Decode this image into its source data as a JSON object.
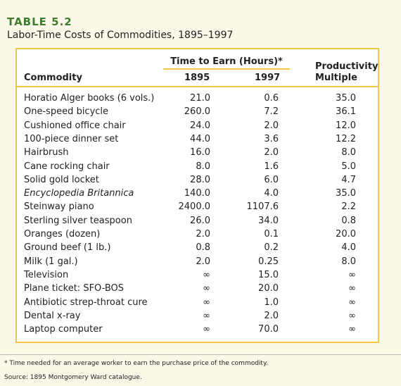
{
  "header": {
    "label": "TABLE 5.2",
    "title": "Labor-Time Costs of Commodities, 1895–1997"
  },
  "table": {
    "group_header": "Time to Earn (Hours)*",
    "columns": [
      "Commodity",
      "1895",
      "1997",
      "Productivity Multiple"
    ],
    "rows": [
      [
        "Horatio Alger books (6 vols.)",
        "21.0",
        "0.6",
        "35.0"
      ],
      [
        "One-speed bicycle",
        "260.0",
        "7.2",
        "36.1"
      ],
      [
        "Cushioned office chair",
        "24.0",
        "2.0",
        "12.0"
      ],
      [
        "100-piece dinner set",
        "44.0",
        "3.6",
        "12.2"
      ],
      [
        "Hairbrush",
        "16.0",
        "2.0",
        "8.0"
      ],
      [
        "Cane rocking chair",
        "8.0",
        "1.6",
        "5.0"
      ],
      [
        "Solid gold locket",
        "28.0",
        "6.0",
        "4.7"
      ],
      [
        "Encyclopedia Britannica",
        "140.0",
        "4.0",
        "35.0"
      ],
      [
        "Steinway piano",
        "2400.0",
        "1107.6",
        "2.2"
      ],
      [
        "Sterling silver teaspoon",
        "26.0",
        "34.0",
        "0.8"
      ],
      [
        "Oranges (dozen)",
        "2.0",
        "0.1",
        "20.0"
      ],
      [
        "Ground beef (1 lb.)",
        "0.8",
        "0.2",
        "4.0"
      ],
      [
        "Milk (1 gal.)",
        "2.0",
        "0.25",
        "8.0"
      ],
      [
        "Television",
        "∞",
        "15.0",
        "∞"
      ],
      [
        "Plane ticket: SFO-BOS",
        "∞",
        "20.0",
        "∞"
      ],
      [
        "Antibiotic strep-throat cure",
        "∞",
        "1.0",
        "∞"
      ],
      [
        "Dental x-ray",
        "∞",
        "2.0",
        "∞"
      ],
      [
        "Laptop computer",
        "∞",
        "70.0",
        "∞"
      ]
    ]
  },
  "footer": {
    "note": "* Time needed for an average worker to earn the purchase price of the commodity.",
    "source": "Source: 1895 Montgomery Ward catalogue."
  }
}
